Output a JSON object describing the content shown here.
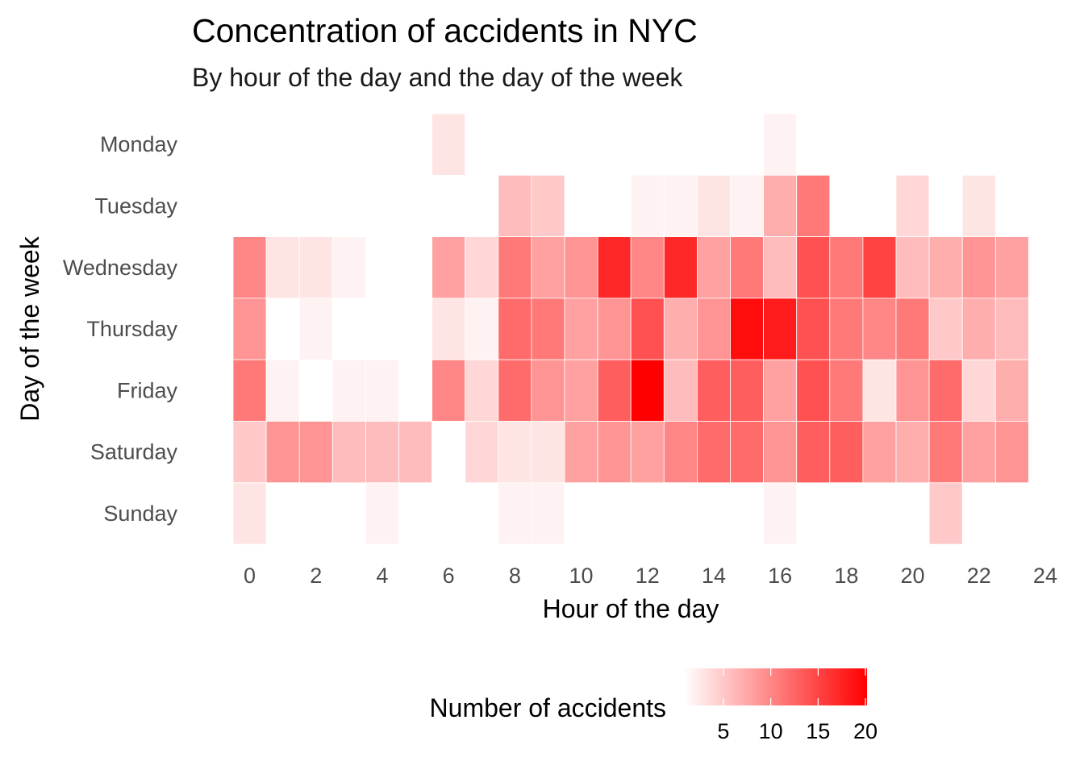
{
  "chart_data": {
    "type": "heatmap",
    "title": "Concentration of accidents in NYC",
    "subtitle": "By hour of the day and the day of the week",
    "xlabel": "Hour of the day",
    "ylabel": "Day of the week",
    "x_ticks": [
      0,
      2,
      4,
      6,
      8,
      10,
      12,
      14,
      16,
      18,
      20,
      22,
      24
    ],
    "xlim": [
      -0.5,
      24
    ],
    "days": [
      "Monday",
      "Tuesday",
      "Wednesday",
      "Thursday",
      "Friday",
      "Saturday",
      "Sunday"
    ],
    "hours": [
      0,
      1,
      2,
      3,
      4,
      5,
      6,
      7,
      8,
      9,
      10,
      11,
      12,
      13,
      14,
      15,
      16,
      17,
      18,
      19,
      20,
      21,
      22,
      23
    ],
    "values": [
      [
        1,
        null,
        null,
        null,
        null,
        null,
        3,
        null,
        null,
        null,
        1,
        null,
        null,
        null,
        null,
        null,
        2,
        1,
        1,
        1,
        null,
        null,
        null,
        null
      ],
      [
        null,
        null,
        null,
        1,
        null,
        null,
        null,
        1,
        6,
        5,
        null,
        null,
        2,
        2,
        3,
        2,
        7,
        11,
        null,
        1,
        4,
        1,
        3,
        1
      ],
      [
        10,
        3,
        3,
        2,
        null,
        1,
        8,
        4,
        11,
        8,
        9,
        17,
        10,
        17,
        8,
        11,
        6,
        14,
        11,
        15,
        6,
        7,
        9,
        8
      ],
      [
        9,
        1,
        2,
        null,
        null,
        1,
        3,
        2,
        12,
        11,
        8,
        9,
        14,
        7,
        9,
        19,
        18,
        14,
        11,
        10,
        11,
        5,
        7,
        6
      ],
      [
        11,
        2,
        null,
        2,
        2,
        null,
        10,
        4,
        12,
        9,
        8,
        13,
        20,
        6,
        13,
        13,
        8,
        14,
        11,
        3,
        9,
        12,
        4,
        7
      ],
      [
        5,
        9,
        9,
        6,
        6,
        6,
        1,
        4,
        3,
        3,
        8,
        9,
        8,
        10,
        12,
        12,
        9,
        13,
        13,
        8,
        7,
        11,
        8,
        9
      ],
      [
        3,
        1,
        null,
        null,
        2,
        null,
        null,
        null,
        2,
        2,
        1,
        1,
        null,
        1,
        null,
        1,
        2,
        null,
        1,
        null,
        null,
        5,
        null,
        null
      ]
    ],
    "color_scale": {
      "low": "#ffffff",
      "high": "#ff0000",
      "min": 1,
      "max": 20
    },
    "legend": {
      "title": "Number of accidents",
      "ticks": [
        5,
        10,
        15,
        20
      ],
      "placement": "bottom"
    },
    "grid": false
  }
}
